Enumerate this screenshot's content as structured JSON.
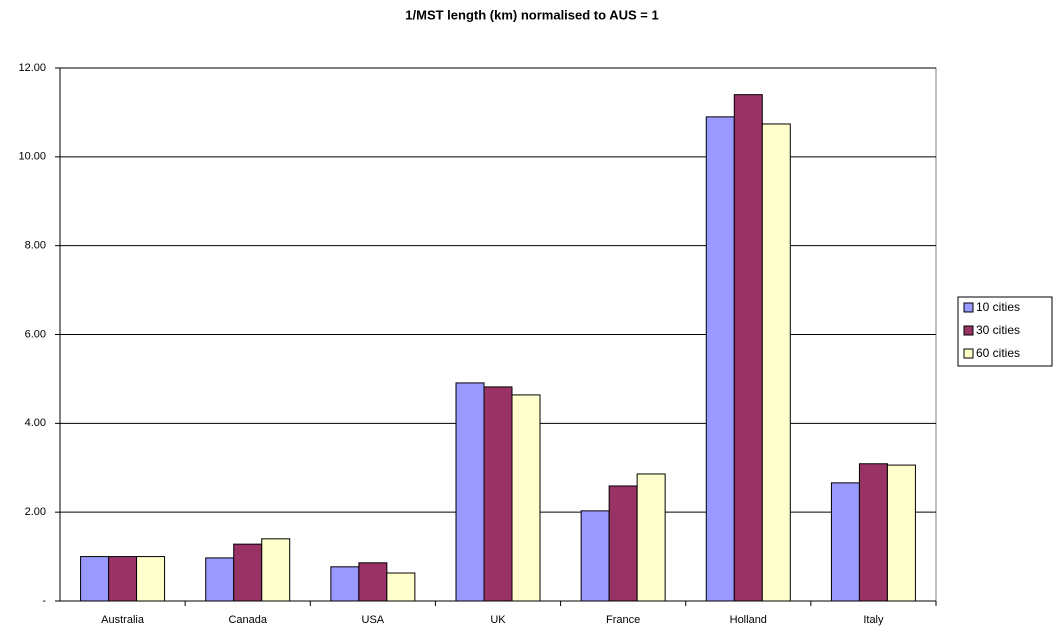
{
  "chart_data": {
    "type": "bar",
    "title": "1/MST length (km) normalised to AUS = 1",
    "categories": [
      "Australia",
      "Canada",
      "USA",
      "UK",
      "France",
      "Holland",
      "Italy"
    ],
    "series": [
      {
        "name": "10 cities",
        "color": "#9999ff",
        "values": [
          1.0,
          0.97,
          0.77,
          4.91,
          2.03,
          10.9,
          2.66
        ]
      },
      {
        "name": "30 cities",
        "color": "#993366",
        "values": [
          1.0,
          1.28,
          0.86,
          4.82,
          2.59,
          11.4,
          3.09
        ]
      },
      {
        "name": "60 cities",
        "color": "#ffffcc",
        "values": [
          1.0,
          1.4,
          0.63,
          4.64,
          2.86,
          10.74,
          3.06
        ]
      }
    ],
    "ylim": [
      0,
      12
    ],
    "yticks": [
      {
        "value": 0,
        "label": "-"
      },
      {
        "value": 2,
        "label": "2.00"
      },
      {
        "value": 4,
        "label": "4.00"
      },
      {
        "value": 6,
        "label": "6.00"
      },
      {
        "value": 8,
        "label": "8.00"
      },
      {
        "value": 10,
        "label": "10.00"
      },
      {
        "value": 12,
        "label": "12.00"
      }
    ],
    "grid": true,
    "legend": "right"
  }
}
